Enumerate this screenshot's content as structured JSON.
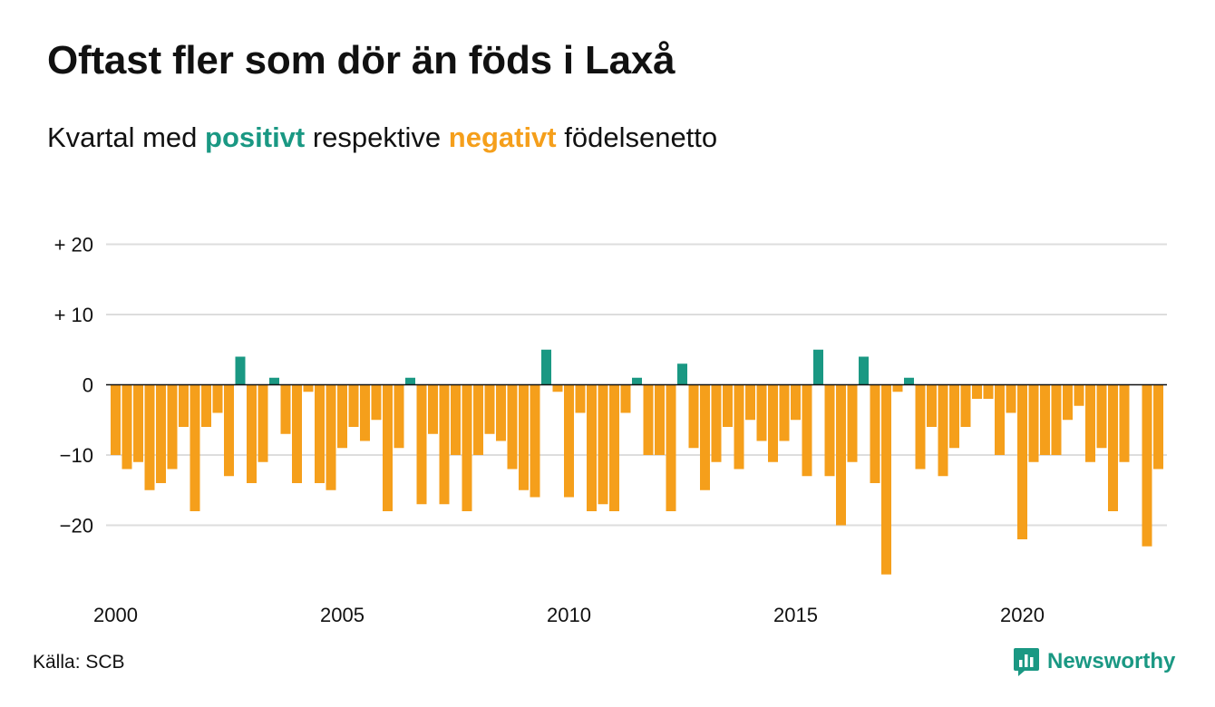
{
  "title": "Oftast fler som dör än föds i Laxå",
  "subtitle": {
    "part1": "Kvartal med ",
    "positive_word": "positivt",
    "part2": " respektive ",
    "negative_word": "negativt",
    "part3": " födelsenetto"
  },
  "source": "Källa: SCB",
  "logo_text": "Newsworthy",
  "colors": {
    "positive": "#1a9883",
    "negative": "#f59f1b",
    "grid": "#dddddd",
    "zero_line": "#111111"
  },
  "chart_data": {
    "type": "bar",
    "title": "Oftast fler som dör än föds i Laxå",
    "subtitle": "Kvartal med positivt respektive negativt födelsenetto",
    "x_start": "2000 Q1",
    "x_ticks": [
      "2000",
      "2005",
      "2010",
      "2015",
      "2020"
    ],
    "y_ticks": [
      {
        "value": 20,
        "label": "+ 20"
      },
      {
        "value": 10,
        "label": "+ 10"
      },
      {
        "value": 0,
        "label": "0"
      },
      {
        "value": -10,
        "label": "−10"
      },
      {
        "value": -20,
        "label": "−20"
      }
    ],
    "ylim": [
      -28,
      20
    ],
    "grid": true,
    "values": [
      -10,
      -12,
      -11,
      -15,
      -14,
      -12,
      -6,
      -18,
      -6,
      -4,
      -13,
      4,
      -14,
      -11,
      1,
      -7,
      -14,
      -1,
      -14,
      -15,
      -9,
      -6,
      -8,
      -5,
      -18,
      -9,
      1,
      -17,
      -7,
      -17,
      -10,
      -18,
      -10,
      -7,
      -8,
      -12,
      -15,
      -16,
      5,
      -1,
      -16,
      -4,
      -18,
      -17,
      -18,
      -4,
      1,
      -10,
      -10,
      -18,
      3,
      -9,
      -15,
      -11,
      -6,
      -12,
      -5,
      -8,
      -11,
      -8,
      -5,
      -13,
      5,
      -13,
      -20,
      -11,
      4,
      -14,
      -27,
      -1,
      1,
      -12,
      -6,
      -13,
      -9,
      -6,
      -2,
      -2,
      -10,
      -4,
      -22,
      -11,
      -10,
      -10,
      -5,
      -3,
      -11,
      -9,
      -18,
      -11,
      0,
      -23,
      -12
    ]
  }
}
